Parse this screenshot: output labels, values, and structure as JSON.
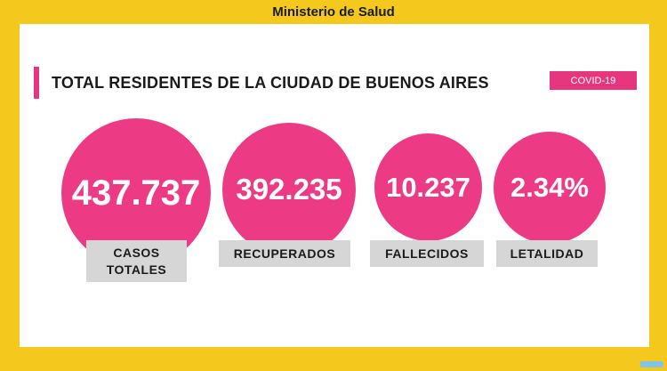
{
  "header": {
    "ministry": "Ministerio de Salud"
  },
  "panel": {
    "title": "TOTAL RESIDENTES DE LA CIUDAD DE BUENOS AIRES",
    "tag": "COVID-19"
  },
  "stats": [
    {
      "value": "437.737",
      "label_line1": "CASOS",
      "label_line2": "TOTALES"
    },
    {
      "value": "392.235",
      "label": "RECUPERADOS"
    },
    {
      "value": "10.237",
      "label": "FALLECIDOS"
    },
    {
      "value": "2.34%",
      "label": "LETALIDAD"
    }
  ],
  "colors": {
    "frame": "#f5c81e",
    "accent": "#ec3b84",
    "label_bg": "#d6d6d6"
  }
}
